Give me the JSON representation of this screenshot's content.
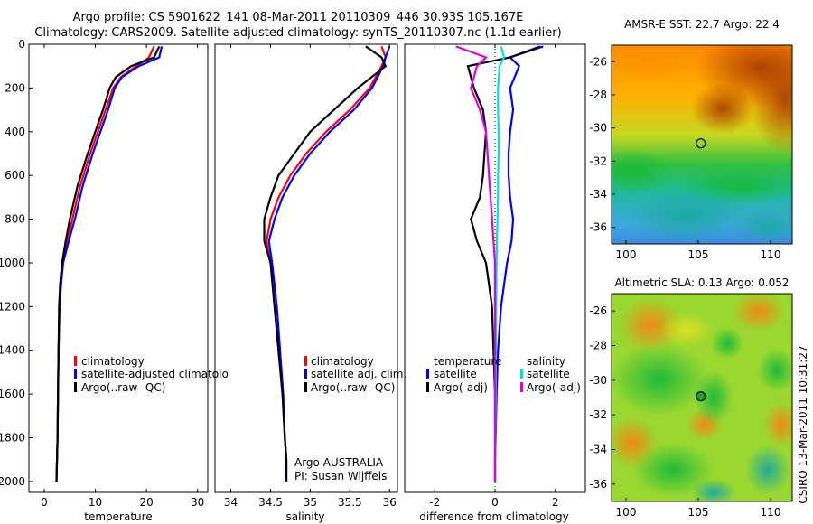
{
  "title_line1": "Argo profile: CS 5901622_141 08-Mar-2011 20110309_446 30.93S 105.167E",
  "title_line2": "Climatology: CARS2009. Satellite-adjusted climatology: synTS_20110307.nc (1.1d earlier)",
  "side_label": "CSIRO 13-Mar-2011 10:31:27",
  "colors": {
    "climatology": "#ff0000",
    "satellite": "#0000ff",
    "argo": "#000000",
    "sal_satellite": "#00e0e0",
    "sal_argo": "#e000e0"
  },
  "chart_data": [
    {
      "type": "line",
      "xlabel": "temperature",
      "xlim": [
        -3,
        32
      ],
      "ylim": [
        2050,
        0
      ],
      "xticks": [
        0,
        10,
        20,
        30
      ],
      "yticks": [
        0,
        200,
        400,
        600,
        800,
        1000,
        1200,
        1400,
        1600,
        1800,
        2000
      ],
      "series": [
        {
          "name": "climatology",
          "x": [
            21.5,
            20.5,
            18,
            15,
            13.5,
            12,
            10.5,
            9,
            7,
            5.5,
            4.5,
            3.5,
            3.2,
            3.0,
            2.8,
            2.7,
            2.6,
            2.5,
            2.4
          ],
          "y": [
            10,
            60,
            100,
            150,
            200,
            300,
            400,
            500,
            650,
            800,
            900,
            1000,
            1100,
            1200,
            1400,
            1600,
            1800,
            1900,
            2000
          ]
        },
        {
          "name": "satellite-adjusted climatology",
          "x": [
            23,
            22.5,
            18.5,
            15.2,
            13.8,
            12.5,
            11,
            9.5,
            7.5,
            6,
            4.8,
            3.7,
            3.3,
            3.0,
            2.8,
            2.7,
            2.6,
            2.5,
            2.4
          ],
          "y": [
            10,
            60,
            100,
            150,
            200,
            300,
            400,
            500,
            650,
            800,
            900,
            1000,
            1100,
            1200,
            1400,
            1600,
            1800,
            1900,
            2000
          ]
        },
        {
          "name": "Argo(..raw -QC)",
          "x": [
            22.5,
            21.5,
            17,
            14,
            12.8,
            11.5,
            10,
            8.5,
            6.5,
            5,
            4.2,
            3.5,
            3.1,
            2.9,
            2.8,
            2.7,
            2.6,
            2.5,
            2.4
          ],
          "y": [
            10,
            60,
            100,
            150,
            200,
            300,
            400,
            500,
            650,
            800,
            900,
            1000,
            1100,
            1200,
            1400,
            1600,
            1800,
            1900,
            2000
          ]
        }
      ],
      "legend": [
        "climatology",
        "satellite-adjusted climatolo",
        "Argo(..raw -QC)"
      ]
    },
    {
      "type": "line",
      "xlabel": "salinity",
      "xlim": [
        33.8,
        36.1
      ],
      "ylim": [
        2050,
        0
      ],
      "xticks": [
        34,
        34.5,
        35,
        35.5,
        36
      ],
      "series": [
        {
          "name": "climatology",
          "x": [
            35.9,
            35.95,
            35.9,
            35.75,
            35.5,
            35.2,
            34.95,
            34.75,
            34.6,
            34.5,
            34.45,
            34.5,
            34.55,
            34.6,
            34.65,
            34.68,
            34.7,
            34.7
          ],
          "y": [
            10,
            60,
            100,
            200,
            300,
            400,
            500,
            600,
            700,
            800,
            900,
            1000,
            1200,
            1400,
            1600,
            1800,
            1900,
            2000
          ]
        },
        {
          "name": "satellite adj. clim.",
          "x": [
            36.0,
            35.95,
            35.92,
            35.78,
            35.55,
            35.25,
            35.0,
            34.8,
            34.65,
            34.55,
            34.48,
            34.52,
            34.58,
            34.62,
            34.66,
            34.68,
            34.7,
            34.7
          ],
          "y": [
            10,
            60,
            100,
            200,
            300,
            400,
            500,
            600,
            700,
            800,
            900,
            1000,
            1200,
            1400,
            1600,
            1800,
            1900,
            2000
          ]
        },
        {
          "name": "Argo(..raw -QC)",
          "x": [
            35.7,
            35.9,
            35.95,
            35.6,
            35.3,
            35.0,
            34.8,
            34.6,
            34.5,
            34.42,
            34.42,
            34.5,
            34.55,
            34.6,
            34.65,
            34.68,
            34.7,
            34.7
          ],
          "y": [
            10,
            60,
            100,
            200,
            300,
            400,
            500,
            600,
            700,
            800,
            900,
            1000,
            1200,
            1400,
            1600,
            1800,
            1900,
            2000
          ]
        }
      ],
      "legend": [
        "climatology",
        "satellite adj. clim.",
        "Argo(..raw -QC)"
      ],
      "annotation": [
        "Argo AUSTRALIA",
        "PI: Susan Wijffels"
      ]
    },
    {
      "type": "line",
      "xlabel": "difference from climatology",
      "xlim": [
        -3,
        3
      ],
      "ylim": [
        2050,
        0
      ],
      "xticks": [
        -2,
        0,
        2
      ],
      "series": [
        {
          "name": "temperature satellite",
          "x": [
            1.6,
            0.5,
            0.8,
            0.5,
            0.6,
            0.5,
            0.45,
            0.45,
            0.5,
            0.6,
            0.55,
            0.4,
            0.2,
            0.1,
            0.05,
            0.02,
            0.0,
            0.0
          ],
          "y": [
            10,
            60,
            100,
            200,
            300,
            400,
            500,
            600,
            700,
            800,
            900,
            1000,
            1200,
            1400,
            1600,
            1800,
            1900,
            2000
          ]
        },
        {
          "name": "temperature Argo(-adj)",
          "x": [
            1.5,
            0.5,
            -0.9,
            -0.7,
            -0.4,
            -0.3,
            -0.35,
            -0.4,
            -0.5,
            -0.8,
            -0.6,
            -0.3,
            -0.1,
            -0.05,
            0.0,
            0.0,
            0.0,
            0.0
          ],
          "y": [
            10,
            60,
            100,
            200,
            300,
            400,
            500,
            600,
            700,
            800,
            900,
            1000,
            1200,
            1400,
            1600,
            1800,
            1900,
            2000
          ]
        },
        {
          "name": "salinity satellite",
          "x": [
            0.2,
            0.3,
            0.15,
            0.1,
            0.1,
            0.12,
            0.12,
            0.1,
            0.1,
            0.08,
            0.06,
            0.05,
            0.04,
            0.03,
            0.02,
            0.01,
            0.0,
            0.0
          ],
          "y": [
            10,
            60,
            100,
            200,
            300,
            400,
            500,
            600,
            700,
            800,
            900,
            1000,
            1200,
            1400,
            1600,
            1800,
            1900,
            2000
          ]
        },
        {
          "name": "salinity Argo(-adj)",
          "x": [
            -1.3,
            -0.3,
            -0.6,
            -0.8,
            -0.5,
            -0.3,
            -0.25,
            -0.2,
            -0.15,
            -0.1,
            -0.05,
            0.0,
            0.0,
            0.0,
            0.0,
            0.0,
            0.0,
            0.0
          ],
          "y": [
            10,
            60,
            100,
            200,
            300,
            400,
            500,
            600,
            700,
            800,
            900,
            1000,
            1200,
            1400,
            1600,
            1800,
            1900,
            2000
          ]
        }
      ],
      "legend_headers": [
        "temperature",
        "salinity"
      ],
      "legend": [
        "satellite",
        "Argo(-adj)",
        "satellite",
        "Argo(-adj)"
      ]
    },
    {
      "type": "heatmap",
      "title": "AMSR-E SST: 22.7 Argo: 22.4",
      "xlim": [
        99,
        111.5
      ],
      "ylim": [
        -37,
        -25
      ],
      "xticks": [
        100,
        105,
        110
      ],
      "yticks": [
        -26,
        -28,
        -30,
        -32,
        -34,
        -36
      ],
      "marker": {
        "x": 105.17,
        "y": -30.93
      }
    },
    {
      "type": "heatmap",
      "title": "Altimetric SLA: 0.13 Argo: 0.052",
      "xlim": [
        99,
        111.5
      ],
      "ylim": [
        -37,
        -25
      ],
      "xticks": [
        100,
        105,
        110
      ],
      "yticks": [
        -26,
        -28,
        -30,
        -32,
        -34,
        -36
      ],
      "marker": {
        "x": 105.17,
        "y": -30.93
      }
    }
  ]
}
